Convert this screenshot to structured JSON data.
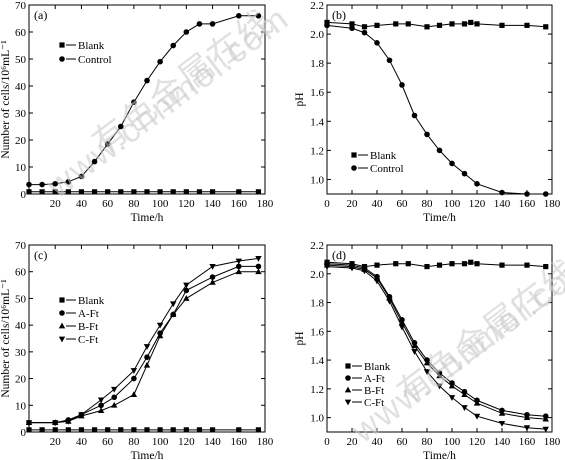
{
  "watermark": {
    "cn": "有色金属在线",
    "url": "www.cnnmol.com"
  },
  "chart_data": [
    {
      "id": "a",
      "type": "line",
      "panel_label": "(a)",
      "xlabel": "Time/h",
      "ylabel": "Number of cells/10⁶mL⁻¹",
      "xlim": [
        0,
        180
      ],
      "ylim": [
        0,
        70
      ],
      "xticks": [
        20,
        40,
        60,
        80,
        100,
        120,
        140,
        160,
        180
      ],
      "xtick_labels": [
        "20",
        "40",
        "60",
        "80",
        "100",
        "120",
        "140",
        "160",
        "180"
      ],
      "yticks": [
        0,
        10,
        20,
        30,
        40,
        50,
        60,
        70
      ],
      "ytick_labels": [
        "0",
        "10",
        "20",
        "30",
        "40",
        "50",
        "60",
        "70"
      ],
      "legend": {
        "position": "top-left"
      },
      "series": [
        {
          "name": "Blank",
          "marker": "square",
          "x": [
            0,
            10,
            20,
            30,
            40,
            50,
            60,
            70,
            80,
            90,
            100,
            110,
            120,
            130,
            140,
            160,
            175
          ],
          "y": [
            0.8,
            0.8,
            0.8,
            0.8,
            0.8,
            0.8,
            0.8,
            0.8,
            0.8,
            0.8,
            0.8,
            0.8,
            0.8,
            0.8,
            0.8,
            0.8,
            0.8
          ]
        },
        {
          "name": "Control",
          "marker": "circle",
          "x": [
            0,
            10,
            20,
            30,
            40,
            50,
            60,
            70,
            80,
            90,
            100,
            110,
            120,
            130,
            140,
            160,
            175
          ],
          "y": [
            3.5,
            3.5,
            3.8,
            4.5,
            6.5,
            12,
            18.5,
            25,
            34,
            42,
            49,
            55,
            60,
            63,
            63,
            66,
            66
          ]
        }
      ]
    },
    {
      "id": "b",
      "type": "line",
      "panel_label": "(b)",
      "xlabel": "Time/h",
      "ylabel": "pH",
      "xlim": [
        0,
        180
      ],
      "ylim": [
        0.9,
        2.2
      ],
      "xticks": [
        0,
        20,
        40,
        60,
        80,
        100,
        120,
        140,
        160,
        180
      ],
      "xtick_labels": [
        "0",
        "20",
        "40",
        "60",
        "80",
        "100",
        "120",
        "140",
        "160",
        "180"
      ],
      "yticks": [
        1.0,
        1.2,
        1.4,
        1.6,
        1.8,
        2.0,
        2.2
      ],
      "ytick_labels": [
        "1.0",
        "1.2",
        "1.4",
        "1.6",
        "1.8",
        "2.0",
        "2.2"
      ],
      "legend": {
        "position": "bottom-center"
      },
      "series": [
        {
          "name": "Blank",
          "marker": "square",
          "x": [
            0,
            20,
            30,
            40,
            55,
            65,
            80,
            90,
            100,
            110,
            115,
            120,
            140,
            160,
            175
          ],
          "y": [
            2.08,
            2.07,
            2.05,
            2.06,
            2.07,
            2.07,
            2.05,
            2.06,
            2.07,
            2.07,
            2.08,
            2.07,
            2.06,
            2.06,
            2.05
          ]
        },
        {
          "name": "Control",
          "marker": "circle",
          "x": [
            0,
            20,
            30,
            40,
            50,
            60,
            70,
            80,
            90,
            100,
            110,
            120,
            140,
            160,
            175
          ],
          "y": [
            2.06,
            2.04,
            2.01,
            1.94,
            1.82,
            1.65,
            1.44,
            1.31,
            1.2,
            1.11,
            1.04,
            0.97,
            0.91,
            0.9,
            0.9
          ]
        }
      ]
    },
    {
      "id": "c",
      "type": "line",
      "panel_label": "(c)",
      "xlabel": "Time/h",
      "ylabel": "Number of cells/10⁶mL⁻¹",
      "xlim": [
        0,
        180
      ],
      "ylim": [
        0,
        70
      ],
      "xticks": [
        20,
        40,
        60,
        80,
        100,
        120,
        140,
        160,
        180
      ],
      "xtick_labels": [
        "20",
        "40",
        "60",
        "80",
        "100",
        "120",
        "140",
        "160",
        "180"
      ],
      "yticks": [
        0,
        10,
        20,
        30,
        40,
        50,
        60,
        70
      ],
      "ytick_labels": [
        "0",
        "10",
        "20",
        "30",
        "40",
        "50",
        "60",
        "70"
      ],
      "legend": {
        "position": "center-left"
      },
      "series": [
        {
          "name": "Blank",
          "marker": "square",
          "x": [
            0,
            10,
            20,
            30,
            40,
            50,
            60,
            70,
            80,
            90,
            100,
            110,
            120,
            130,
            140,
            160,
            175
          ],
          "y": [
            0.8,
            0.8,
            0.8,
            0.8,
            0.8,
            0.8,
            0.8,
            0.8,
            0.8,
            0.8,
            0.8,
            0.8,
            0.8,
            0.8,
            0.8,
            0.8,
            0.8
          ]
        },
        {
          "name": "A-Ft",
          "marker": "circle",
          "x": [
            0,
            20,
            30,
            40,
            55,
            65,
            80,
            90,
            100,
            110,
            120,
            140,
            160,
            175
          ],
          "y": [
            3.5,
            3.5,
            4.5,
            6.5,
            10,
            13,
            20,
            28,
            37,
            44,
            53,
            58,
            62,
            62
          ]
        },
        {
          "name": "B-Ft",
          "marker": "triangle-up",
          "x": [
            0,
            20,
            30,
            40,
            55,
            65,
            80,
            90,
            100,
            110,
            120,
            140,
            160,
            175
          ],
          "y": [
            3.5,
            3.5,
            4,
            6,
            8,
            10,
            14,
            25,
            36,
            44,
            50,
            56,
            60,
            60
          ]
        },
        {
          "name": "C-Ft",
          "marker": "triangle-down",
          "x": [
            0,
            20,
            30,
            40,
            55,
            65,
            80,
            90,
            100,
            110,
            120,
            140,
            160,
            175
          ],
          "y": [
            3.5,
            3.5,
            4,
            6.5,
            12,
            16,
            23,
            32,
            40,
            48,
            55,
            62,
            64,
            65
          ]
        }
      ]
    },
    {
      "id": "d",
      "type": "line",
      "panel_label": "(d)",
      "xlabel": "Time/h",
      "ylabel": "pH",
      "xlim": [
        0,
        180
      ],
      "ylim": [
        0.9,
        2.2
      ],
      "xticks": [
        0,
        20,
        40,
        60,
        80,
        100,
        120,
        140,
        160,
        180
      ],
      "xtick_labels": [
        "0",
        "20",
        "40",
        "60",
        "80",
        "100",
        "120",
        "140",
        "160",
        "180"
      ],
      "yticks": [
        1.0,
        1.2,
        1.4,
        1.6,
        1.8,
        2.0,
        2.2
      ],
      "ytick_labels": [
        "1.0",
        "1.2",
        "1.4",
        "1.6",
        "1.8",
        "2.0",
        "2.2"
      ],
      "legend": {
        "position": "bottom-left"
      },
      "series": [
        {
          "name": "Blank",
          "marker": "square",
          "x": [
            0,
            20,
            30,
            40,
            55,
            65,
            80,
            90,
            100,
            110,
            115,
            120,
            140,
            160,
            175
          ],
          "y": [
            2.08,
            2.07,
            2.05,
            2.06,
            2.07,
            2.07,
            2.05,
            2.06,
            2.07,
            2.07,
            2.08,
            2.07,
            2.06,
            2.06,
            2.05
          ]
        },
        {
          "name": "A-Ft",
          "marker": "circle",
          "x": [
            0,
            20,
            30,
            40,
            50,
            60,
            70,
            80,
            90,
            100,
            110,
            120,
            140,
            160,
            175
          ],
          "y": [
            2.07,
            2.06,
            2.04,
            1.98,
            1.84,
            1.68,
            1.52,
            1.4,
            1.31,
            1.24,
            1.18,
            1.12,
            1.05,
            1.02,
            1.01
          ]
        },
        {
          "name": "B-Ft",
          "marker": "triangle-up",
          "x": [
            0,
            20,
            30,
            40,
            50,
            60,
            70,
            80,
            90,
            100,
            110,
            120,
            140,
            160,
            175
          ],
          "y": [
            2.06,
            2.05,
            2.03,
            1.97,
            1.83,
            1.66,
            1.5,
            1.38,
            1.29,
            1.22,
            1.16,
            1.1,
            1.03,
            1.0,
            0.99
          ]
        },
        {
          "name": "C-Ft",
          "marker": "triangle-down",
          "x": [
            0,
            20,
            30,
            40,
            50,
            60,
            70,
            80,
            90,
            100,
            110,
            120,
            140,
            160,
            175
          ],
          "y": [
            2.05,
            2.04,
            2.02,
            1.95,
            1.81,
            1.63,
            1.46,
            1.32,
            1.22,
            1.14,
            1.07,
            1.01,
            0.96,
            0.93,
            0.92
          ]
        }
      ]
    }
  ]
}
